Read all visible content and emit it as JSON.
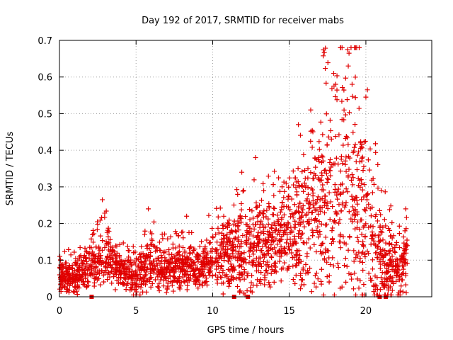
{
  "chart_data": {
    "type": "scatter",
    "title": "Day 192 of 2017, SRMTID for receiver mabs",
    "xlabel": "GPS time / hours",
    "ylabel": "SRMTID / TECUs",
    "xlim": [
      0,
      24.3
    ],
    "ylim": [
      0,
      0.7
    ],
    "x_ticks": [
      0,
      5,
      10,
      15,
      20
    ],
    "x_tick_labels": [
      "0",
      "5",
      "10",
      "15",
      "20"
    ],
    "y_ticks": [
      0,
      0.1,
      0.2,
      0.3,
      0.4,
      0.5,
      0.6,
      0.7
    ],
    "y_tick_labels": [
      "0",
      "0.1",
      "0.2",
      "0.3",
      "0.4",
      "0.5",
      "0.6",
      "0.7"
    ],
    "grid": true,
    "marker": "plus",
    "color": "#e00000",
    "series": [
      {
        "name": "SRMTID",
        "envelope": {
          "hours": [
            0,
            1,
            2,
            3,
            4,
            5,
            6,
            7,
            8,
            9,
            10,
            11,
            12,
            13,
            14,
            15,
            16,
            17,
            18,
            18.7,
            19.5,
            20,
            21,
            22,
            22.7
          ],
          "median": [
            0.06,
            0.05,
            0.08,
            0.11,
            0.07,
            0.05,
            0.09,
            0.07,
            0.08,
            0.08,
            0.1,
            0.11,
            0.11,
            0.13,
            0.15,
            0.17,
            0.2,
            0.24,
            0.28,
            0.3,
            0.25,
            0.2,
            0.1,
            0.07,
            0.09
          ],
          "spread": [
            0.05,
            0.05,
            0.06,
            0.09,
            0.05,
            0.06,
            0.08,
            0.06,
            0.07,
            0.06,
            0.09,
            0.1,
            0.13,
            0.12,
            0.12,
            0.13,
            0.21,
            0.27,
            0.3,
            0.35,
            0.32,
            0.24,
            0.14,
            0.09,
            0.1
          ]
        },
        "notable_points": [
          {
            "x": 2.8,
            "y": 0.265
          },
          {
            "x": 5.8,
            "y": 0.24
          },
          {
            "x": 8.3,
            "y": 0.22
          },
          {
            "x": 11.9,
            "y": 0.34
          },
          {
            "x": 12.8,
            "y": 0.38
          },
          {
            "x": 14.8,
            "y": 0.31
          },
          {
            "x": 16.4,
            "y": 0.51
          },
          {
            "x": 17.9,
            "y": 0.61
          },
          {
            "x": 18.8,
            "y": 0.675
          },
          {
            "x": 18.9,
            "y": 0.665
          },
          {
            "x": 18.85,
            "y": 0.63
          },
          {
            "x": 19.1,
            "y": 0.58
          },
          {
            "x": 20.1,
            "y": 0.565
          },
          {
            "x": 20.0,
            "y": 0.545
          },
          {
            "x": 21.0,
            "y": 0.29
          },
          {
            "x": 22.6,
            "y": 0.24
          }
        ],
        "zero_markers_x": [
          2.1,
          11.4,
          12.3,
          20.9,
          21.3
        ]
      }
    ]
  }
}
